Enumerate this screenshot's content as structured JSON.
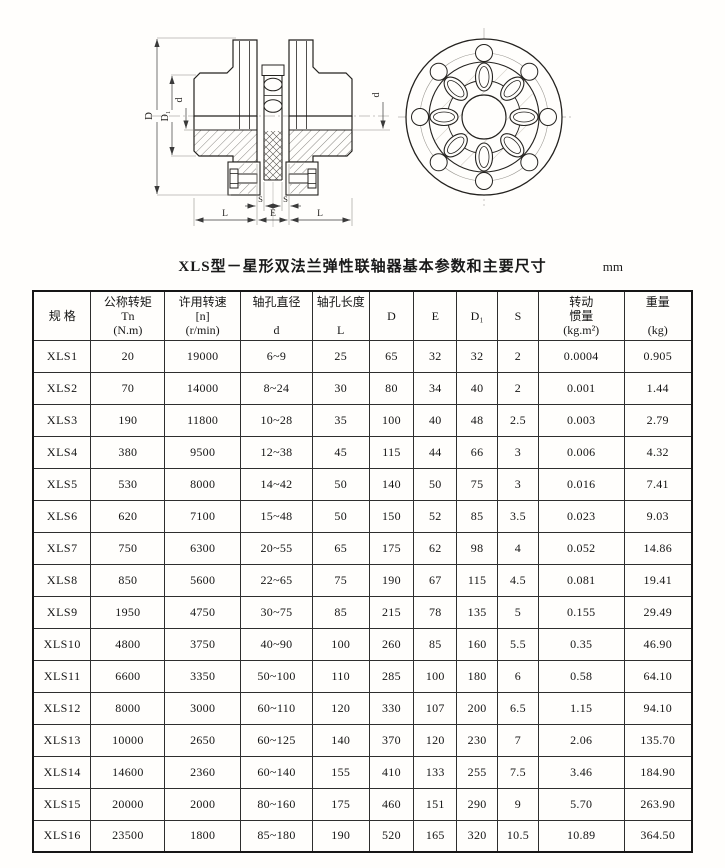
{
  "title": {
    "text": "XLS型－星形双法兰弹性联轴器基本参数和主要尺寸",
    "unit": "mm"
  },
  "drawing": {
    "labels": {
      "dim_D": "D",
      "dim_D1": "D₁",
      "dim_d_left": "d",
      "dim_d_right": "d",
      "dim_S_left": "S",
      "dim_S_right": "S",
      "dim_E": "E",
      "dim_L_left": "L",
      "dim_L_right": "L"
    }
  },
  "table": {
    "columns": [
      "规  格",
      "公称转矩\nTn\n(N.m)",
      "许用转速\n[n]\n(r/min)",
      "轴孔直径\n\nd",
      "轴孔长度\n\nL",
      "D",
      "E",
      "D₁",
      "S",
      "转动\n惯量\n(kg.m²)",
      "重量\n\n(kg)"
    ],
    "rows": [
      [
        "XLS1",
        "20",
        "19000",
        "6~9",
        "25",
        "65",
        "32",
        "32",
        "2",
        "0.0004",
        "0.905"
      ],
      [
        "XLS2",
        "70",
        "14000",
        "8~24",
        "30",
        "80",
        "34",
        "40",
        "2",
        "0.001",
        "1.44"
      ],
      [
        "XLS3",
        "190",
        "11800",
        "10~28",
        "35",
        "100",
        "40",
        "48",
        "2.5",
        "0.003",
        "2.79"
      ],
      [
        "XLS4",
        "380",
        "9500",
        "12~38",
        "45",
        "115",
        "44",
        "66",
        "3",
        "0.006",
        "4.32"
      ],
      [
        "XLS5",
        "530",
        "8000",
        "14~42",
        "50",
        "140",
        "50",
        "75",
        "3",
        "0.016",
        "7.41"
      ],
      [
        "XLS6",
        "620",
        "7100",
        "15~48",
        "50",
        "150",
        "52",
        "85",
        "3.5",
        "0.023",
        "9.03"
      ],
      [
        "XLS7",
        "750",
        "6300",
        "20~55",
        "65",
        "175",
        "62",
        "98",
        "4",
        "0.052",
        "14.86"
      ],
      [
        "XLS8",
        "850",
        "5600",
        "22~65",
        "75",
        "190",
        "67",
        "115",
        "4.5",
        "0.081",
        "19.41"
      ],
      [
        "XLS9",
        "1950",
        "4750",
        "30~75",
        "85",
        "215",
        "78",
        "135",
        "5",
        "0.155",
        "29.49"
      ],
      [
        "XLS10",
        "4800",
        "3750",
        "40~90",
        "100",
        "260",
        "85",
        "160",
        "5.5",
        "0.35",
        "46.90"
      ],
      [
        "XLS11",
        "6600",
        "3350",
        "50~100",
        "110",
        "285",
        "100",
        "180",
        "6",
        "0.58",
        "64.10"
      ],
      [
        "XLS12",
        "8000",
        "3000",
        "60~110",
        "120",
        "330",
        "107",
        "200",
        "6.5",
        "1.15",
        "94.10"
      ],
      [
        "XLS13",
        "10000",
        "2650",
        "60~125",
        "140",
        "370",
        "120",
        "230",
        "7",
        "2.06",
        "135.70"
      ],
      [
        "XLS14",
        "14600",
        "2360",
        "60~140",
        "155",
        "410",
        "133",
        "255",
        "7.5",
        "3.46",
        "184.90"
      ],
      [
        "XLS15",
        "20000",
        "2000",
        "80~160",
        "175",
        "460",
        "151",
        "290",
        "9",
        "5.70",
        "263.90"
      ],
      [
        "XLS16",
        "23500",
        "1800",
        "85~180",
        "190",
        "520",
        "165",
        "320",
        "10.5",
        "10.89",
        "364.50"
      ]
    ]
  }
}
